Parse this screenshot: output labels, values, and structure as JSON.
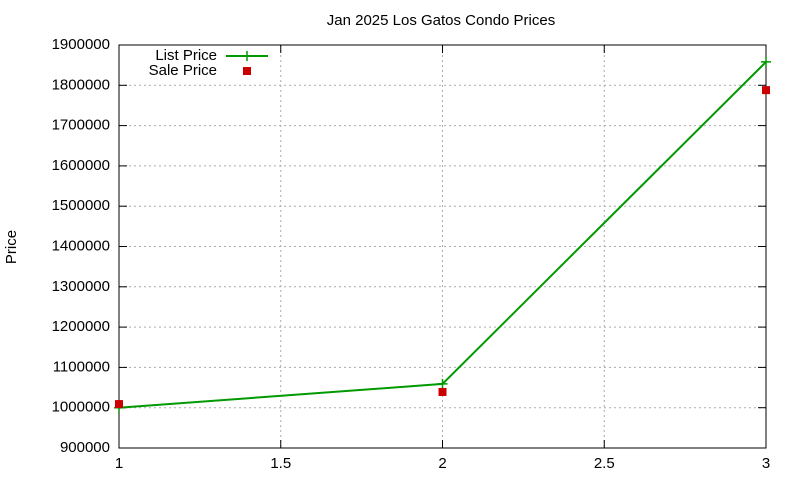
{
  "chart_data": {
    "type": "line",
    "title": "Jan 2025 Los Gatos Condo Prices",
    "y_label": "Price",
    "x": [
      1,
      2,
      3
    ],
    "series": [
      {
        "name": "List Price",
        "color": "#009900",
        "mode": "lines+points",
        "marker": "plus",
        "values": [
          1000000,
          1059000,
          1858000
        ]
      },
      {
        "name": "Sale Price",
        "color": "#cc0000",
        "mode": "points",
        "marker": "square",
        "values": [
          1009000,
          1039000,
          1788000
        ]
      }
    ],
    "xlim": [
      1,
      3
    ],
    "xticks": [
      1,
      1.5,
      2,
      2.5,
      3
    ],
    "ylim": [
      900000,
      1900000
    ],
    "yticks": [
      900000,
      1000000,
      1100000,
      1200000,
      1300000,
      1400000,
      1500000,
      1600000,
      1700000,
      1800000,
      1900000
    ],
    "grid": true,
    "legend": "top-left"
  }
}
